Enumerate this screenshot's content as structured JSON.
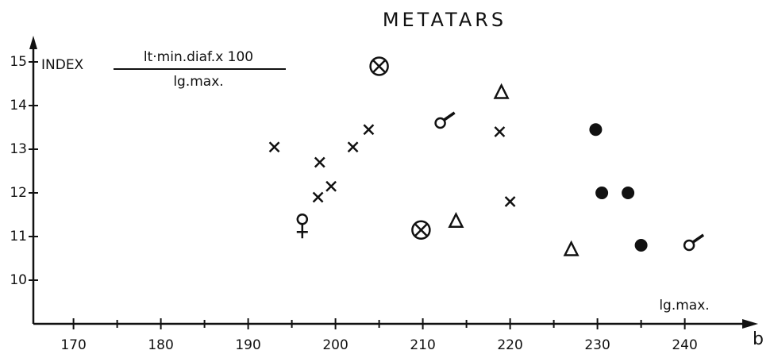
{
  "chart_data": {
    "type": "scatter",
    "title": "METATARS",
    "y_label": "INDEX",
    "formula_numerator": "lt·min.diaf.x 100",
    "formula_denominator": "lg.max.",
    "x_label": "lg.max.",
    "x_axis_letter": "b",
    "color": "#111111",
    "xlim": [
      165.4,
      248.4
    ],
    "ylim": [
      9,
      15.6
    ],
    "xticks": [
      170,
      180,
      190,
      200,
      210,
      220,
      230,
      240
    ],
    "xminorticks": [
      175,
      185,
      195,
      205,
      215,
      225,
      235
    ],
    "yticks": [
      10,
      11,
      12,
      13,
      14,
      15
    ],
    "series": [
      {
        "marker": "x",
        "x": [
          193,
          198.2,
          198,
          199.5,
          202,
          203.8,
          218.8,
          220
        ],
        "values": [
          13.05,
          12.7,
          11.9,
          12.15,
          13.05,
          13.45,
          13.4,
          11.8
        ]
      },
      {
        "marker": "circle-cross",
        "x": [
          205,
          209.8
        ],
        "values": [
          14.9,
          11.15
        ]
      },
      {
        "marker": "triangle",
        "x": [
          219,
          213.8,
          227
        ],
        "values": [
          14.3,
          11.35,
          10.7
        ]
      },
      {
        "marker": "dot",
        "x": [
          229.8,
          230.5,
          233.5,
          235
        ],
        "values": [
          13.45,
          12.0,
          12.0,
          10.8
        ]
      },
      {
        "marker": "male",
        "x": [
          212,
          240.5
        ],
        "values": [
          13.6,
          10.8
        ]
      },
      {
        "marker": "female",
        "x": [
          196.2
        ],
        "values": [
          11.25
        ]
      }
    ]
  }
}
